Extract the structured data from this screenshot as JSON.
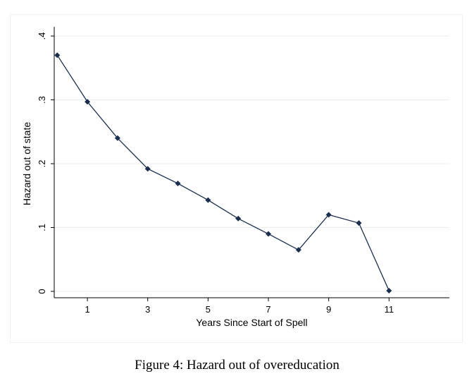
{
  "caption": "Figure 4: Hazard out of overeducation",
  "chart_data": {
    "type": "line",
    "xlabel": "Years Since Start of Spell",
    "ylabel": "Hazard out of state",
    "x_ticks": [
      1,
      3,
      5,
      7,
      9,
      11
    ],
    "x_tick_labels": [
      "1",
      "3",
      "5",
      "7",
      "9",
      "11"
    ],
    "y_ticks": [
      0,
      0.1,
      0.2,
      0.3,
      0.4
    ],
    "y_tick_labels": [
      "0",
      ".1",
      ".2",
      ".3",
      ".4"
    ],
    "xlim": [
      -0.1,
      13.0
    ],
    "ylim": [
      -0.01,
      0.41
    ],
    "grid": true,
    "colors": {
      "line": "#1c2e4e",
      "marker": "#1c2e4e",
      "grid": "#e8ecf1",
      "axis": "#000000"
    },
    "series": [
      {
        "x": [
          0,
          1,
          2,
          3,
          4,
          5,
          6,
          7,
          8,
          9,
          10,
          11
        ],
        "values": [
          0.37,
          0.297,
          0.24,
          0.192,
          0.169,
          0.143,
          0.114,
          0.09,
          0.065,
          0.12,
          0.107,
          0.001
        ]
      }
    ]
  }
}
